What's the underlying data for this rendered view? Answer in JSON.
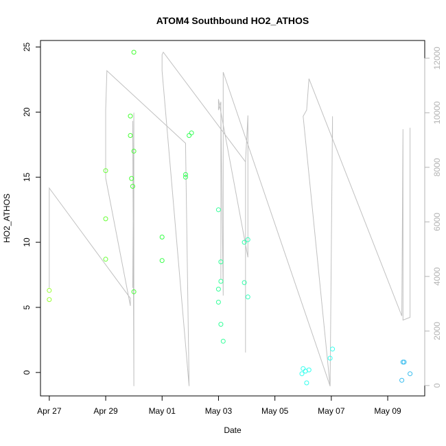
{
  "chart_data": {
    "type": "scatter",
    "title": "ATOM4 Southbound HO2_ATHOS",
    "xlabel": "Date",
    "ylabel": "HO2_ATHOS",
    "x_is_date": true,
    "x_ticks": [
      "Apr 27",
      "Apr 29",
      "May 01",
      "May 03",
      "May 05",
      "May 07",
      "May 09"
    ],
    "y_ticks": [
      0,
      5,
      10,
      15,
      20,
      25
    ],
    "y_right_ticks": [
      0,
      2000,
      4000,
      6000,
      8000,
      10000,
      12000
    ],
    "xlim": [
      "2016-04-26T16:30",
      "2016-05-10T07:30"
    ],
    "ylim": [
      -1.8,
      25.5
    ],
    "y_right_lim": [
      -380,
      12650
    ],
    "grid": false,
    "series": [
      {
        "kind": "points",
        "marker": "open-circle",
        "points": [
          {
            "x": "2016-04-27T00:00",
            "y": 6.3,
            "color": "#99ff33"
          },
          {
            "x": "2016-04-27T00:00",
            "y": 5.6,
            "color": "#99ff33"
          },
          {
            "x": "2016-04-29T00:00",
            "y": 15.5,
            "color": "#66ff33"
          },
          {
            "x": "2016-04-29T00:00",
            "y": 11.8,
            "color": "#66ff33"
          },
          {
            "x": "2016-04-29T00:00",
            "y": 8.7,
            "color": "#66ff33"
          },
          {
            "x": "2016-04-29T21:00",
            "y": 19.7,
            "color": "#44ff33"
          },
          {
            "x": "2016-04-29T21:00",
            "y": 18.2,
            "color": "#44ff33"
          },
          {
            "x": "2016-04-29T22:00",
            "y": 14.9,
            "color": "#44ff33"
          },
          {
            "x": "2016-04-29T23:00",
            "y": 14.3,
            "color": "#44ff33"
          },
          {
            "x": "2016-04-30T00:00",
            "y": 24.6,
            "color": "#44ff33"
          },
          {
            "x": "2016-04-30T00:00",
            "y": 17.0,
            "color": "#44ff33"
          },
          {
            "x": "2016-04-30T00:00",
            "y": 6.2,
            "color": "#44ff33"
          },
          {
            "x": "2016-05-01T00:00",
            "y": 10.4,
            "color": "#33ff44"
          },
          {
            "x": "2016-05-01T00:00",
            "y": 8.6,
            "color": "#33ff44"
          },
          {
            "x": "2016-05-01T20:00",
            "y": 15.2,
            "color": "#33ff55"
          },
          {
            "x": "2016-05-01T20:00",
            "y": 15.0,
            "color": "#33ff55"
          },
          {
            "x": "2016-05-01T23:00",
            "y": 18.2,
            "color": "#33ff55"
          },
          {
            "x": "2016-05-02T01:00",
            "y": 18.4,
            "color": "#33ff55"
          },
          {
            "x": "2016-05-03T00:00",
            "y": 12.5,
            "color": "#33ff99"
          },
          {
            "x": "2016-05-03T00:00",
            "y": 6.4,
            "color": "#33ff99"
          },
          {
            "x": "2016-05-03T00:00",
            "y": 5.4,
            "color": "#33ff99"
          },
          {
            "x": "2016-05-03T02:00",
            "y": 8.5,
            "color": "#33ff99"
          },
          {
            "x": "2016-05-03T02:00",
            "y": 7.0,
            "color": "#33ff99"
          },
          {
            "x": "2016-05-03T02:00",
            "y": 3.7,
            "color": "#33ff99"
          },
          {
            "x": "2016-05-03T04:00",
            "y": 2.4,
            "color": "#33ff99"
          },
          {
            "x": "2016-05-03T22:00",
            "y": 10.0,
            "color": "#33ffaa"
          },
          {
            "x": "2016-05-03T22:00",
            "y": 6.9,
            "color": "#33ffaa"
          },
          {
            "x": "2016-05-04T01:00",
            "y": 10.2,
            "color": "#33ffbb"
          },
          {
            "x": "2016-05-04T01:00",
            "y": 5.8,
            "color": "#33ffbb"
          },
          {
            "x": "2016-05-06T00:00",
            "y": 0.3,
            "color": "#33ffee"
          },
          {
            "x": "2016-05-05T23:00",
            "y": -0.1,
            "color": "#33ffee"
          },
          {
            "x": "2016-05-06T02:00",
            "y": 0.1,
            "color": "#33ffee"
          },
          {
            "x": "2016-05-06T05:00",
            "y": 0.2,
            "color": "#33ffee"
          },
          {
            "x": "2016-05-06T03:00",
            "y": -0.8,
            "color": "#33ffee"
          },
          {
            "x": "2016-05-06T23:00",
            "y": 1.1,
            "color": "#33ffee"
          },
          {
            "x": "2016-05-07T01:00",
            "y": 1.8,
            "color": "#33ffee"
          },
          {
            "x": "2016-05-09T13:00",
            "y": 0.8,
            "color": "#33bbee"
          },
          {
            "x": "2016-05-09T14:00",
            "y": 0.8,
            "color": "#33bbee"
          },
          {
            "x": "2016-05-09T12:00",
            "y": -0.6,
            "color": "#33bbee"
          },
          {
            "x": "2016-05-09T19:00",
            "y": -0.1,
            "color": "#33bbee"
          }
        ]
      },
      {
        "kind": "line",
        "axis": "right",
        "color": "#c0c0c0",
        "points": [
          {
            "x": "2016-04-27T00:00",
            "y": 3580
          },
          {
            "x": "2016-04-27T00:00",
            "y": 7240
          },
          {
            "x": "2016-04-29T21:00",
            "y": 3200
          },
          {
            "x": "2016-04-29T21:00",
            "y": 2920
          },
          {
            "x": "2016-04-29T00:00",
            "y": 7610
          },
          {
            "x": "2016-04-29T00:00",
            "y": 10100
          },
          {
            "x": "2016-04-29T01:00",
            "y": 11540
          },
          {
            "x": "2016-05-01T20:00",
            "y": 8880
          },
          {
            "x": "2016-05-01T20:00",
            "y": 8710
          },
          {
            "x": "2016-05-01T23:00",
            "y": -20
          },
          {
            "x": "2016-05-01T23:00",
            "y": -20
          },
          {
            "x": "2016-05-01T00:00",
            "y": 11540
          },
          {
            "x": "2016-05-01T00:00",
            "y": 12130
          },
          {
            "x": "2016-05-01T01:00",
            "y": 12220
          },
          {
            "x": "2016-05-03T23:00",
            "y": 8200
          },
          {
            "x": "2016-05-03T23:00",
            "y": 6800
          },
          {
            "x": "2016-05-03T23:00",
            "y": 1210
          },
          {
            "x": "2016-05-03T23:00",
            "y": 8200
          },
          {
            "x": "2016-05-04T01:00",
            "y": 9900
          },
          {
            "x": "2016-05-04T01:00",
            "y": 4700
          },
          {
            "x": "2016-05-03T00:00",
            "y": 10500
          },
          {
            "x": "2016-05-03T00:00",
            "y": 10100
          },
          {
            "x": "2016-05-03T02:00",
            "y": 10400
          },
          {
            "x": "2016-05-03T02:00",
            "y": 3900
          },
          {
            "x": "2016-05-03T02:00",
            "y": 10000
          },
          {
            "x": "2016-05-03T04:00",
            "y": 3300
          },
          {
            "x": "2016-05-03T04:00",
            "y": 11490
          },
          {
            "x": "2016-05-06T23:00",
            "y": -20
          },
          {
            "x": "2016-05-06T00:00",
            "y": 9870
          },
          {
            "x": "2016-05-06T03:00",
            "y": 10100
          },
          {
            "x": "2016-05-06T05:00",
            "y": 11250
          },
          {
            "x": "2016-05-09T12:00",
            "y": 2550
          },
          {
            "x": "2016-05-09T12:00",
            "y": 2550
          },
          {
            "x": "2016-05-09T13:00",
            "y": 9400
          },
          {
            "x": "2016-05-09T13:00",
            "y": 2400
          },
          {
            "x": "2016-05-09T19:00",
            "y": 2500
          },
          {
            "x": "2016-05-09T19:00",
            "y": 9450
          }
        ]
      },
      {
        "kind": "line",
        "axis": "right",
        "color": "#c0c0c0",
        "points": [
          {
            "x": "2016-04-29T23:00",
            "y": 3580
          },
          {
            "x": "2016-04-30T00:00",
            "y": 10000
          },
          {
            "x": "2016-04-30T00:00",
            "y": -20
          },
          {
            "x": "2016-04-29T23:00",
            "y": 9700
          }
        ]
      },
      {
        "kind": "line",
        "axis": "right",
        "color": "#c0c0c0",
        "points": [
          {
            "x": "2016-05-06T23:00",
            "y": -20
          },
          {
            "x": "2016-05-07T01:00",
            "y": 9870
          },
          {
            "x": "2016-05-07T01:00",
            "y": 9000
          }
        ]
      }
    ]
  }
}
